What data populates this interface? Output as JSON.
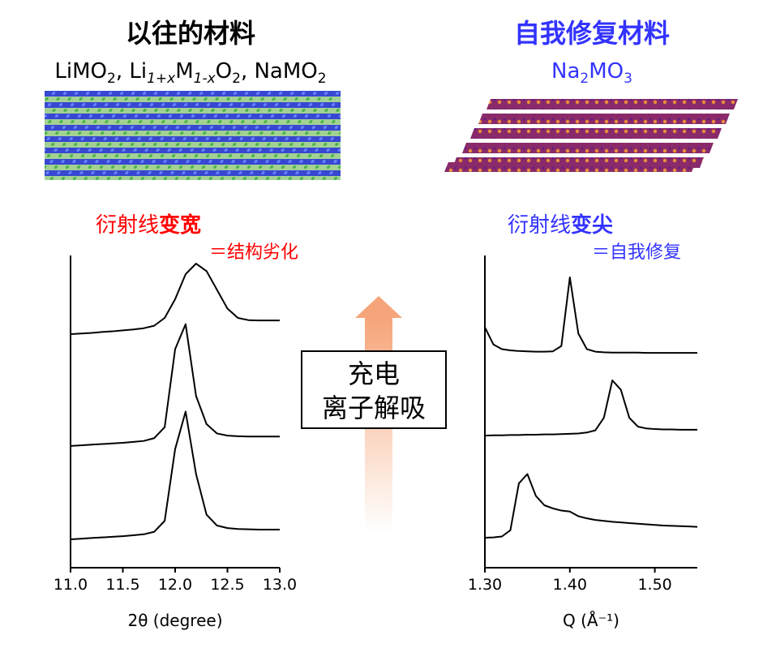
{
  "panels": {
    "left": {
      "heading": "以往的材料",
      "formula": [
        [
          "LiMO",
          "2"
        ],
        [
          ", Li",
          "1+x"
        ],
        [
          "M",
          "1-x"
        ],
        [
          "O",
          "2"
        ],
        [
          ", NaMO",
          "2"
        ]
      ],
      "note_plain": "衍射线",
      "note_bold": "变宽",
      "note_sub": "＝结构劣化",
      "color": "#ff0000"
    },
    "right": {
      "heading": "自我修复材料",
      "formula": [
        [
          "Na",
          "2"
        ],
        [
          "MO",
          "3"
        ]
      ],
      "note_plain": "衍射线",
      "note_bold": "变尖",
      "note_sub": "＝自我修复",
      "color": "#3333ff"
    },
    "center": {
      "lines": [
        "充电",
        "离子解吸"
      ]
    }
  },
  "chart_data": [
    {
      "type": "line",
      "x_label": "2θ (degree)",
      "x": [
        11.0,
        11.1,
        11.2,
        11.3,
        11.4,
        11.5,
        11.6,
        11.7,
        11.8,
        11.9,
        12.0,
        12.1,
        12.2,
        12.3,
        12.4,
        12.5,
        12.6,
        12.7,
        12.8,
        12.9,
        13.0
      ],
      "xlim": [
        11.0,
        13.0
      ],
      "xticks": [
        {
          "value": 11.0,
          "label": "11.0"
        },
        {
          "value": 11.5,
          "label": "11.5"
        },
        {
          "value": 12.0,
          "label": "12.0"
        },
        {
          "value": 12.5,
          "label": "12.5"
        },
        {
          "value": 13.0,
          "label": "13.0"
        }
      ],
      "ylim": [
        0,
        1
      ],
      "series": [
        {
          "color": "#000000",
          "values": [
            0.748,
            0.75,
            0.752,
            0.755,
            0.757,
            0.76,
            0.763,
            0.767,
            0.775,
            0.8,
            0.86,
            0.94,
            0.974,
            0.95,
            0.89,
            0.83,
            0.8,
            0.793,
            0.792,
            0.792,
            0.792
          ]
        },
        {
          "color": "#000000",
          "values": [
            0.39,
            0.392,
            0.394,
            0.396,
            0.398,
            0.4,
            0.403,
            0.406,
            0.415,
            0.45,
            0.7,
            0.78,
            0.55,
            0.46,
            0.43,
            0.423,
            0.421,
            0.42,
            0.42,
            0.42,
            0.42
          ]
        },
        {
          "color": "#000000",
          "values": [
            0.091,
            0.093,
            0.095,
            0.097,
            0.099,
            0.101,
            0.104,
            0.107,
            0.115,
            0.15,
            0.38,
            0.5,
            0.3,
            0.17,
            0.135,
            0.127,
            0.124,
            0.123,
            0.122,
            0.122,
            0.122
          ]
        }
      ]
    },
    {
      "type": "line",
      "x_label": "Q (Å⁻¹)",
      "x": [
        1.3,
        1.31,
        1.32,
        1.33,
        1.34,
        1.35,
        1.36,
        1.37,
        1.38,
        1.39,
        1.4,
        1.41,
        1.42,
        1.43,
        1.44,
        1.45,
        1.46,
        1.47,
        1.48,
        1.49,
        1.5,
        1.51,
        1.52,
        1.53,
        1.54,
        1.55
      ],
      "xlim": [
        1.3,
        1.55
      ],
      "xticks": [
        {
          "value": 1.3,
          "label": "1.30"
        },
        {
          "value": 1.4,
          "label": "1.40"
        },
        {
          "value": 1.5,
          "label": "1.50"
        }
      ],
      "ylim": [
        0,
        1
      ],
      "series": [
        {
          "color": "#000000",
          "values": [
            0.77,
            0.715,
            0.7,
            0.696,
            0.694,
            0.693,
            0.692,
            0.692,
            0.693,
            0.71,
            0.93,
            0.75,
            0.7,
            0.692,
            0.69,
            0.689,
            0.689,
            0.689,
            0.689,
            0.688,
            0.688,
            0.688,
            0.688,
            0.688,
            0.688,
            0.688
          ]
        },
        {
          "color": "#000000",
          "values": [
            0.423,
            0.424,
            0.424,
            0.425,
            0.425,
            0.426,
            0.426,
            0.427,
            0.427,
            0.428,
            0.429,
            0.43,
            0.433,
            0.44,
            0.48,
            0.6,
            0.57,
            0.48,
            0.452,
            0.446,
            0.444,
            0.443,
            0.443,
            0.442,
            0.442,
            0.442
          ]
        },
        {
          "color": "#000000",
          "values": [
            0.096,
            0.097,
            0.1,
            0.12,
            0.27,
            0.3,
            0.23,
            0.2,
            0.19,
            0.183,
            0.18,
            0.165,
            0.158,
            0.153,
            0.15,
            0.147,
            0.145,
            0.143,
            0.141,
            0.139,
            0.137,
            0.135,
            0.134,
            0.133,
            0.132,
            0.131
          ]
        }
      ]
    }
  ]
}
